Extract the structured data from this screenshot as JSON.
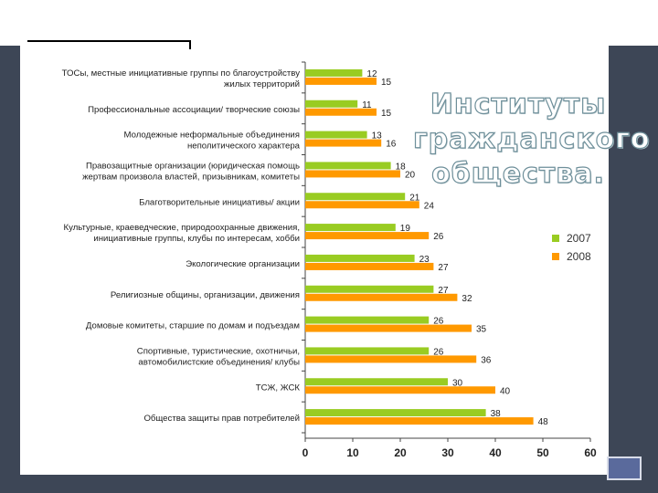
{
  "slide": {
    "title_lines": [
      "Институты",
      "гражданского",
      "общества."
    ]
  },
  "colors": {
    "series_2007": "#99cc22",
    "series_2008": "#ff9900"
  },
  "chart_data": {
    "type": "bar",
    "orientation": "horizontal",
    "categories": [
      [
        "ТОСы, местные инициативные группы по благоустройству",
        "жилых территорий"
      ],
      [
        "Профессиональные ассоциации/ творческие союзы"
      ],
      [
        "Молодежные неформальные объединения",
        "неполитического характера"
      ],
      [
        "Правозащитные организации (юридическая помощь",
        "жертвам произвола властей, призывникам, комитеты"
      ],
      [
        "Благотворительные инициативы/ акции"
      ],
      [
        "Культурные, краеведческие, природоохранные движения,",
        "инициативные группы, клубы по интересам, хобби"
      ],
      [
        "Экологические организации"
      ],
      [
        "Религиозные общины, организации, движения"
      ],
      [
        "Домовые комитеты, старшие по домам и подъездам"
      ],
      [
        "Спортивные, туристические, охотничьи,",
        "автомобилистские объединения/ клубы"
      ],
      [
        "ТСЖ, ЖСК"
      ],
      [
        "Общества защиты прав потребителей"
      ]
    ],
    "series": [
      {
        "name": "2007",
        "values": [
          12,
          11,
          13,
          18,
          21,
          19,
          23,
          27,
          26,
          26,
          30,
          38
        ]
      },
      {
        "name": "2008",
        "values": [
          15,
          15,
          16,
          20,
          24,
          26,
          27,
          32,
          35,
          36,
          40,
          48
        ]
      }
    ],
    "xlim": [
      0,
      60
    ],
    "xticks": [
      "0",
      "10",
      "20",
      "30",
      "40",
      "50",
      "60"
    ],
    "legend_position": "right"
  }
}
